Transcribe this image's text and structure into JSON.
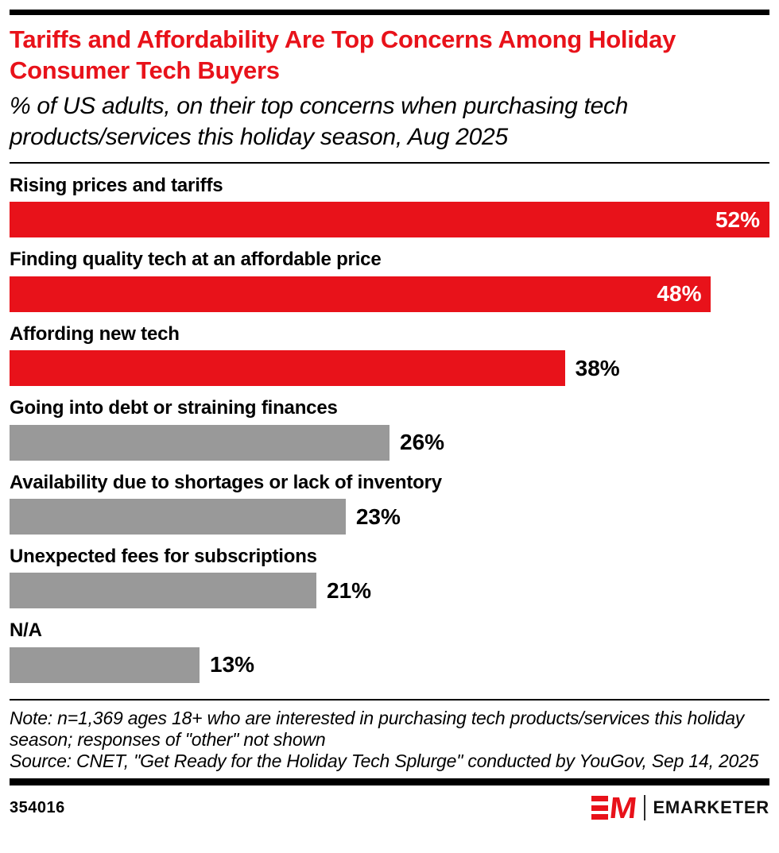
{
  "colors": {
    "red": "#e8121a",
    "gray": "#999999",
    "bar_label_inside": "#ffffff",
    "bar_label_outside": "#000000"
  },
  "header": {
    "title": "Tariffs and Affordability Are Top Concerns Among Holiday Consumer Tech Buyers",
    "subtitle": "% of US adults, on their top concerns when purchasing tech products/services this holiday season, Aug 2025"
  },
  "chart_data": {
    "type": "bar",
    "orientation": "horizontal",
    "value_axis_max": 52,
    "grid": false,
    "legend": false,
    "value_unit": "%",
    "categories": [
      "Rising prices and tariffs",
      "Finding quality tech at an affordable price",
      "Affording new tech",
      "Going into debt or straining finances",
      "Availability due to shortages or lack of inventory",
      "Unexpected fees for subscriptions",
      "N/A"
    ],
    "values": [
      52,
      48,
      38,
      26,
      23,
      21,
      13
    ],
    "items": [
      {
        "category": "Rising prices and tariffs",
        "value": 52,
        "label": "52%",
        "color": "red",
        "value_label_position": "inside"
      },
      {
        "category": "Finding quality tech at an affordable price",
        "value": 48,
        "label": "48%",
        "color": "red",
        "value_label_position": "inside"
      },
      {
        "category": "Affording new tech",
        "value": 38,
        "label": "38%",
        "color": "red",
        "value_label_position": "outside"
      },
      {
        "category": "Going into debt or straining finances",
        "value": 26,
        "label": "26%",
        "color": "gray",
        "value_label_position": "outside"
      },
      {
        "category": "Availability due to shortages or lack of inventory",
        "value": 23,
        "label": "23%",
        "color": "gray",
        "value_label_position": "outside"
      },
      {
        "category": "Unexpected fees for subscriptions",
        "value": 21,
        "label": "21%",
        "color": "gray",
        "value_label_position": "outside"
      },
      {
        "category": "N/A",
        "value": 13,
        "label": "13%",
        "color": "gray",
        "value_label_position": "outside"
      }
    ]
  },
  "footnote": {
    "note": "Note: n=1,369 ages 18+ who are interested in purchasing tech products/services this holiday season; responses of \"other\" not shown",
    "source": "Source: CNET, \"Get Ready for the Holiday Tech Splurge\" conducted by YouGov, Sep 14, 2025"
  },
  "footer": {
    "chart_id": "354016",
    "brand_mark": "M",
    "brand_name": "EMARKETER"
  }
}
